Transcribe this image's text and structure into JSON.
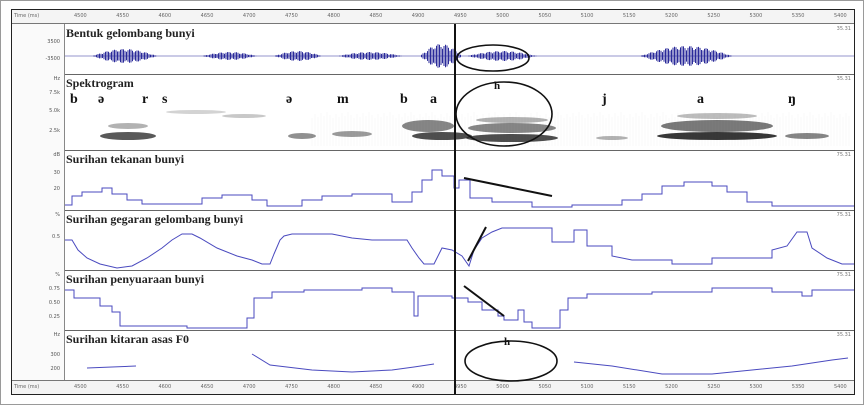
{
  "ruler": {
    "label": "Time (ms)",
    "ticks": [
      "4500",
      "4550",
      "4600",
      "4650",
      "4700",
      "4750",
      "4800",
      "4850",
      "4900",
      "4950",
      "5000",
      "5050",
      "5100",
      "5150",
      "5200",
      "5250",
      "5300",
      "5350",
      "5400"
    ]
  },
  "panels": {
    "waveform": {
      "title": "Bentuk gelombang bunyi",
      "axis": [
        "3500",
        "-3500"
      ],
      "right_value": "35.31"
    },
    "spectrogram": {
      "title": "Spektrogram",
      "axis": [
        "Hz",
        "7.5k",
        "5.0k",
        "2.5k"
      ],
      "right_value": "35.31",
      "phonemes": [
        "b",
        "ə",
        "r",
        "s",
        "ə",
        "m",
        "b",
        "a",
        "h",
        "j",
        "a",
        "ŋ"
      ]
    },
    "intensity": {
      "title": "Surihan tekanan bunyi",
      "axis": [
        "dB",
        "30",
        "20"
      ],
      "right_value": "75.31"
    },
    "amplitude": {
      "title": "Surihan gegaran gelombang bunyi",
      "axis": [
        "%",
        "0.5"
      ],
      "right_value": "75.31"
    },
    "voicing": {
      "title": "Surihan penyuaraan bunyi",
      "axis": [
        "%",
        "0.75",
        "0.50",
        "0.25"
      ],
      "right_value": "75.31"
    },
    "pitch": {
      "title": "Surihan kitaran asas F0",
      "axis": [
        "Hz",
        "300",
        "200"
      ],
      "right_value": "35.31",
      "annotation": "h"
    }
  },
  "colors": {
    "trace": "#4a4abf",
    "waveform": "#2a2a9a",
    "annotation": "#111111"
  }
}
